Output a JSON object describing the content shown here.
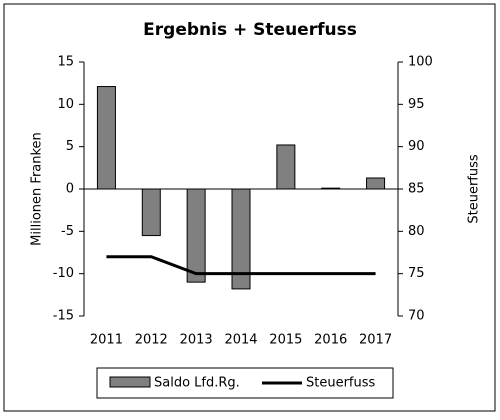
{
  "chart_data": {
    "type": "bar_line",
    "title": "Ergebnis + Steuerfuss",
    "categories": [
      "2011",
      "2012",
      "2013",
      "2014",
      "2015",
      "2016",
      "2017"
    ],
    "ylabel": "Millionen Franken",
    "y2label": "Steuerfuss",
    "ylim": [
      -15,
      15
    ],
    "yticks": [
      -15,
      -10,
      -5,
      0,
      5,
      10,
      15
    ],
    "y2lim": [
      70,
      100
    ],
    "y2ticks": [
      70,
      75,
      80,
      85,
      90,
      95,
      100
    ],
    "series": [
      {
        "name": "Saldo Lfd.Rg.",
        "type": "bar",
        "color": "#808080",
        "values": [
          12.1,
          -5.5,
          -11,
          -11.8,
          5.2,
          0.1,
          1.3
        ]
      },
      {
        "name": "Steuerfuss",
        "type": "line",
        "axis": "y2",
        "color": "#000000",
        "values": [
          77,
          77,
          75,
          75,
          75,
          75,
          75
        ]
      }
    ]
  }
}
